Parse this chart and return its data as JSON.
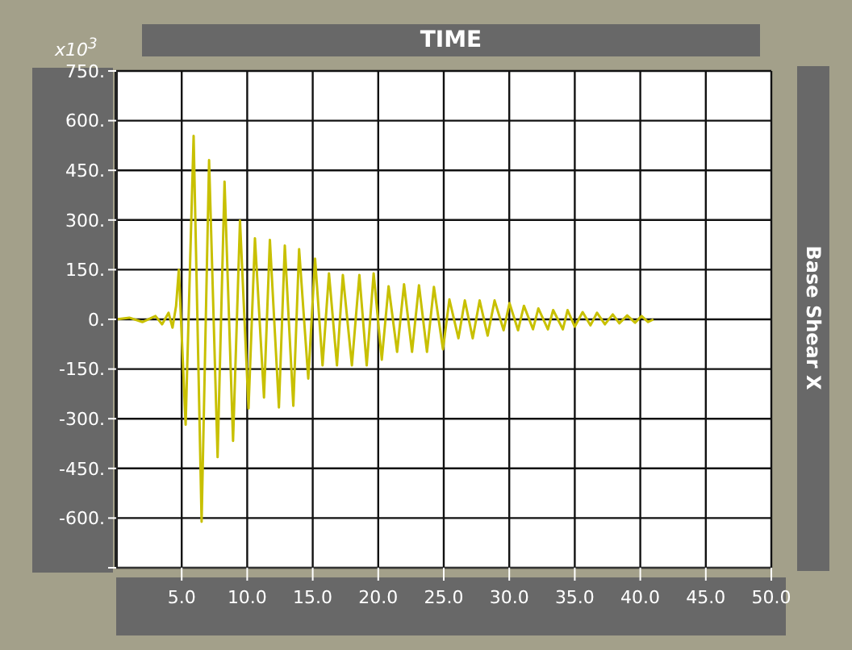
{
  "chart_data": {
    "type": "line",
    "title": "TIME",
    "ylabel": "Base Shear X",
    "annotations": [
      "x10$^{3}$"
    ],
    "xlim": [
      0,
      50
    ],
    "xticks": [
      {
        "value": 5,
        "label": "5.0"
      },
      {
        "value": 10,
        "label": "10.0"
      },
      {
        "value": 15,
        "label": "15.0"
      },
      {
        "value": 20,
        "label": "20.0"
      },
      {
        "value": 25,
        "label": "25.0"
      },
      {
        "value": 30,
        "label": "30.0"
      },
      {
        "value": 35,
        "label": "35.0"
      },
      {
        "value": 40,
        "label": "40.0"
      },
      {
        "value": 45,
        "label": "45.0"
      },
      {
        "value": 50,
        "label": "50.0"
      }
    ],
    "ylim": [
      -750,
      750
    ],
    "yticks": [
      {
        "value": 750,
        "label": "750."
      },
      {
        "value": 600,
        "label": "600."
      },
      {
        "value": 450,
        "label": "450."
      },
      {
        "value": 300,
        "label": "300."
      },
      {
        "value": 150,
        "label": "150."
      },
      {
        "value": 0,
        "label": "0."
      },
      {
        "value": -150,
        "label": "-150."
      },
      {
        "value": -300,
        "label": "-300."
      },
      {
        "value": -450,
        "label": "-450."
      },
      {
        "value": -600,
        "label": "-600."
      },
      {
        "value": -750,
        "label": null
      }
    ],
    "grid": true,
    "series": [
      {
        "color": "#c8c000",
        "x": [
          0,
          1,
          2,
          3,
          3.5,
          4,
          4.3,
          4.57,
          4.78,
          5.3,
          5.91,
          6.52,
          7.09,
          7.74,
          8.27,
          8.92,
          9.45,
          10.1,
          10.59,
          11.28,
          11.73,
          12.42,
          12.87,
          13.52,
          13.96,
          14.66,
          15.18,
          15.75,
          16.24,
          16.85,
          17.3,
          17.99,
          18.56,
          19.12,
          19.65,
          20.27,
          20.79,
          21.44,
          21.97,
          22.58,
          23.11,
          23.72,
          24.25,
          24.94,
          25.43,
          26.12,
          26.61,
          27.21,
          27.74,
          28.35,
          28.88,
          29.57,
          30.02,
          30.67,
          31.12,
          31.81,
          32.22,
          32.95,
          33.35,
          34.09,
          34.45,
          35,
          35.6,
          36.2,
          36.7,
          37.3,
          37.9,
          38.4,
          39,
          39.6,
          40.1,
          40.6,
          41
        ],
        "values": [
          0,
          5,
          -8,
          10,
          -15,
          20,
          -25,
          40,
          150,
          -318,
          554,
          -611,
          481,
          -416,
          416,
          -367,
          298,
          -269,
          245,
          -236,
          240,
          -266,
          223,
          -261,
          212,
          -179,
          183,
          -139,
          139,
          -139,
          134,
          -139,
          134,
          -139,
          139,
          -122,
          100,
          -98,
          106,
          -98,
          103,
          -98,
          98,
          -90,
          60,
          -57,
          57,
          -57,
          57,
          -49,
          57,
          -33,
          49,
          -33,
          41,
          -30,
          33,
          -30,
          28,
          -30,
          28,
          -22,
          22,
          -18,
          20,
          -15,
          15,
          -12,
          12,
          -10,
          10,
          -8,
          0
        ]
      }
    ]
  }
}
